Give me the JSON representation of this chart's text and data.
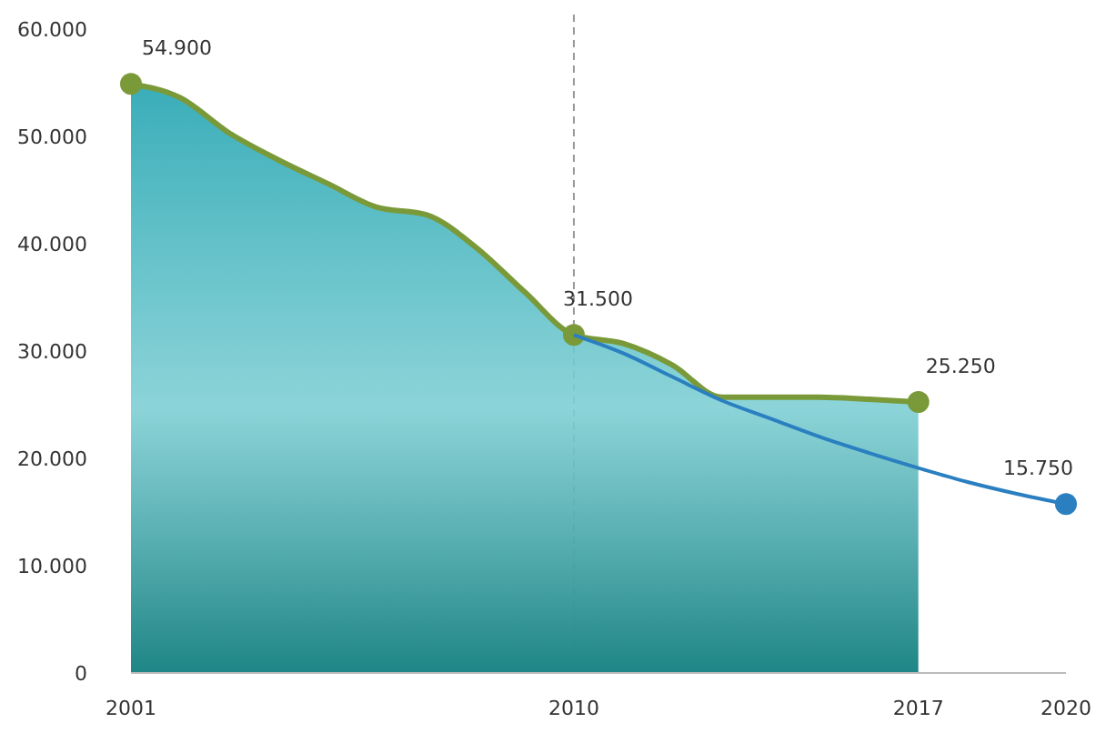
{
  "chart_data": {
    "type": "area",
    "x": [
      2001,
      2002,
      2003,
      2004,
      2005,
      2006,
      2007,
      2008,
      2009,
      2010,
      2011,
      2012,
      2013,
      2014,
      2015,
      2016,
      2017
    ],
    "series": [
      {
        "color": "#7a9a3a",
        "values": [
          54900,
          53600,
          50300,
          47800,
          45600,
          43400,
          42700,
          39700,
          35500,
          31500,
          30700,
          28700,
          25700,
          25700,
          25700,
          25500,
          25250
        ],
        "value_labels": [
          "54.900",
          null,
          null,
          null,
          null,
          null,
          null,
          null,
          null,
          "31.500",
          null,
          null,
          null,
          null,
          null,
          null,
          "25.250"
        ]
      },
      {
        "type": "line",
        "color": "#2a7fc0",
        "x": [
          2010,
          2011,
          2012,
          2013,
          2014,
          2015,
          2016,
          2017,
          2018,
          2019,
          2020
        ],
        "values": [
          31500,
          29800,
          27600,
          25400,
          23700,
          22000,
          20500,
          19100,
          17800,
          16700,
          15750
        ],
        "value_labels": [
          null,
          null,
          null,
          null,
          null,
          null,
          null,
          null,
          null,
          null,
          "15.750"
        ]
      }
    ],
    "xlim": [
      2001,
      2020
    ],
    "xticks": [
      2001,
      2010,
      2017,
      2020
    ],
    "ylim": [
      0,
      60000
    ],
    "yticks": [
      {
        "value": 0,
        "label": "0"
      },
      {
        "value": 10000,
        "label": "10.000"
      },
      {
        "value": 20000,
        "label": "20.000"
      },
      {
        "value": 30000,
        "label": "30.000"
      },
      {
        "value": 40000,
        "label": "40.000"
      },
      {
        "value": 50000,
        "label": "50.000"
      },
      {
        "value": 60000,
        "label": "60.000"
      }
    ],
    "ref_lines": [
      {
        "axis": "x",
        "value": 2010,
        "color": "#999999",
        "line_style": "dashed"
      }
    ],
    "grid": false
  }
}
